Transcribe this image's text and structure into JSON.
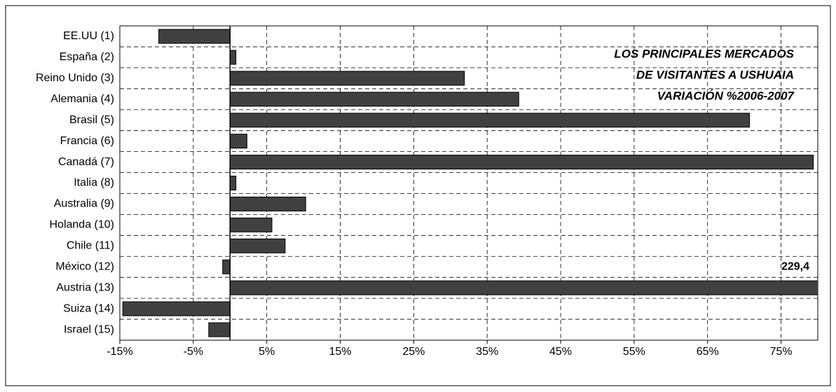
{
  "chart_data": {
    "type": "hbar",
    "title": [
      "LOS PRINCIPALES MERCADOS",
      "DE VISITANTES A USHUAIA",
      "VARIACIÓN %2006-2007"
    ],
    "categories": [
      "EE.UU (1)",
      "España (2)",
      "Reino Unido (3)",
      "Alemania (4)",
      "Brasil (5)",
      "Francia (6)",
      "Canadá (7)",
      "Italia (8)",
      "Australia (9)",
      "Holanda (10)",
      "Chile (11)",
      "México (12)",
      "Austria (13)",
      "Suiza (14)",
      "Israel (15)"
    ],
    "values": [
      -9.7,
      0.8,
      31.9,
      39.3,
      70.7,
      2.3,
      79.4,
      0.8,
      10.3,
      5.7,
      7.5,
      -1.0,
      229.4,
      -14.6,
      -2.9
    ],
    "value_labels": [
      null,
      null,
      null,
      null,
      null,
      null,
      null,
      null,
      null,
      null,
      null,
      null,
      "229,4",
      null,
      null
    ],
    "color": "#404040",
    "xlim": [
      -15,
      80
    ],
    "xticks": [
      {
        "value": -15,
        "label": "-15%"
      },
      {
        "value": -5,
        "label": "-5%"
      },
      {
        "value": 5,
        "label": "5%"
      },
      {
        "value": 15,
        "label": "15%"
      },
      {
        "value": 25,
        "label": "25%"
      },
      {
        "value": 35,
        "label": "35%"
      },
      {
        "value": 45,
        "label": "45%"
      },
      {
        "value": 55,
        "label": "55%"
      },
      {
        "value": 65,
        "label": "65%"
      },
      {
        "value": 75,
        "label": "75%"
      }
    ],
    "grid": true
  }
}
